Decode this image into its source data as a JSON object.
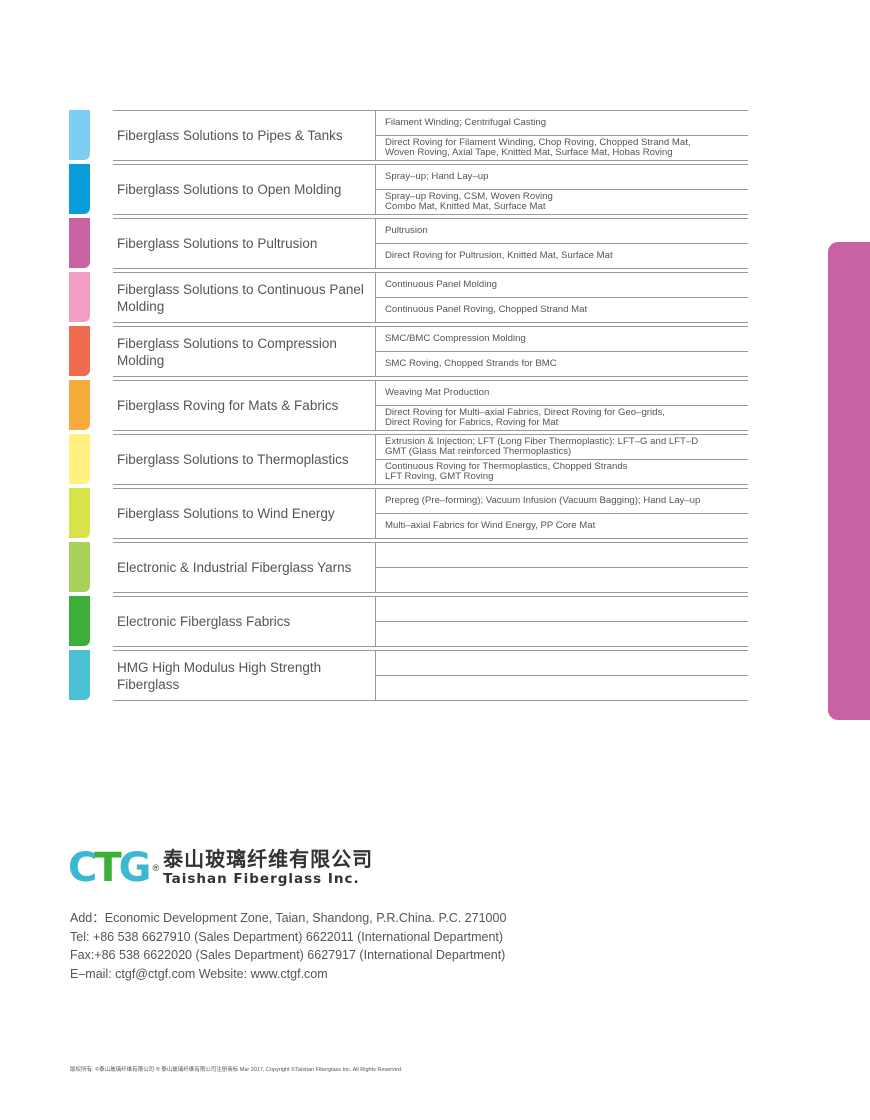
{
  "colors": {
    "tab": "#c962a3",
    "lines": "#999999"
  },
  "groups": [
    {
      "name": "Fiberglass Solutions to Pipes & Tanks",
      "color": "#7ecef4",
      "application": "Filament Winding; Centrifugal Casting",
      "products": "Direct Roving for Filament Winding, Chop Roving, Chopped Strand Mat,\nWoven Roving, Axial Tape, Knitted Mat, Surface Mat, Hobas Roving"
    },
    {
      "name": "Fiberglass Solutions to Open Molding",
      "color": "#0a9bd9",
      "application": "Spray–up; Hand Lay–up",
      "products": "Spray–up Roving, CSM, Woven Roving\nCombo Mat, Knitted Mat, Surface Mat"
    },
    {
      "name": "Fiberglass Solutions to Pultrusion",
      "color": "#c962a3",
      "application": "Pultrusion",
      "products": "Direct Roving for Pultrusion, Knitted Mat, Surface Mat"
    },
    {
      "name": "Fiberglass Solutions to Continuous Panel Molding",
      "color": "#f19ec2",
      "application": "Continuous Panel Molding",
      "products": "Continuous Panel Roving, Chopped Strand Mat"
    },
    {
      "name": "Fiberglass Solutions to Compression Molding",
      "color": "#ee6b4d",
      "application": "SMC/BMC Compression Molding",
      "products": "SMC Roving, Chopped Strands for BMC"
    },
    {
      "name": "Fiberglass Roving for Mats & Fabrics",
      "color": "#f6ab3c",
      "application": "Weaving  Mat Production",
      "products": "Direct Roving for Multi–axial Fabrics, Direct Roving for Geo–grids,\nDirect Roving for Fabrics, Roving for Mat"
    },
    {
      "name": "Fiberglass Solutions to Thermoplastics",
      "color": "#fff07f",
      "application": "Extrusion & Injection; LFT (Long Fiber Thermoplastic): LFT–G and LFT–D\nGMT (Glass Mat reinforced Thermoplastics)",
      "products": "Continuous Roving for Thermoplastics, Chopped Strands\nLFT Roving, GMT Roving"
    },
    {
      "name": "Fiberglass Solutions to Wind Energy",
      "color": "#d8e24a",
      "application": "Prepreg (Pre–forming); Vacuum Infusion (Vacuum Bagging); Hand Lay–up",
      "products": "Multi–axial Fabrics for Wind Energy, PP Core Mat"
    },
    {
      "name": "Electronic & Industrial Fiberglass Yarns",
      "color": "#a8d25a",
      "application": "",
      "products": ""
    },
    {
      "name": "Electronic Fiberglass Fabrics",
      "color": "#3caf38",
      "application": "",
      "products": ""
    },
    {
      "name": "HMG High Modulus High Strength Fiberglass",
      "color": "#4cc1d4",
      "application": "",
      "products": ""
    }
  ],
  "logo": {
    "mark": "CTG",
    "registered": "®",
    "name_cn": "泰山玻璃纤维有限公司",
    "name_en": "Taishan Fiberglass Inc.",
    "mark_colors": [
      "#3cb8d0",
      "#3caf38",
      "#3cb8d0"
    ]
  },
  "contact": {
    "address": "Add：Economic Development Zone, Taian, Shandong, P.R.China. P.C. 271000",
    "tel": "Tel: +86 538 6627910 (Sales Department)    6622011 (International Department)",
    "fax": "Fax:+86 538 6622020 (Sales Department)    6627917 (International Department)",
    "email": "E–mail: ctgf@ctgf.com   Website: www.ctgf.com"
  },
  "footer": "版权所有: ©泰山玻璃纤维有限公司  ® 泰山玻璃纤维有限公司注册商标    Mar 2017, Copyright ©Taishan Fiberglass Inc. All Rights Reserved."
}
